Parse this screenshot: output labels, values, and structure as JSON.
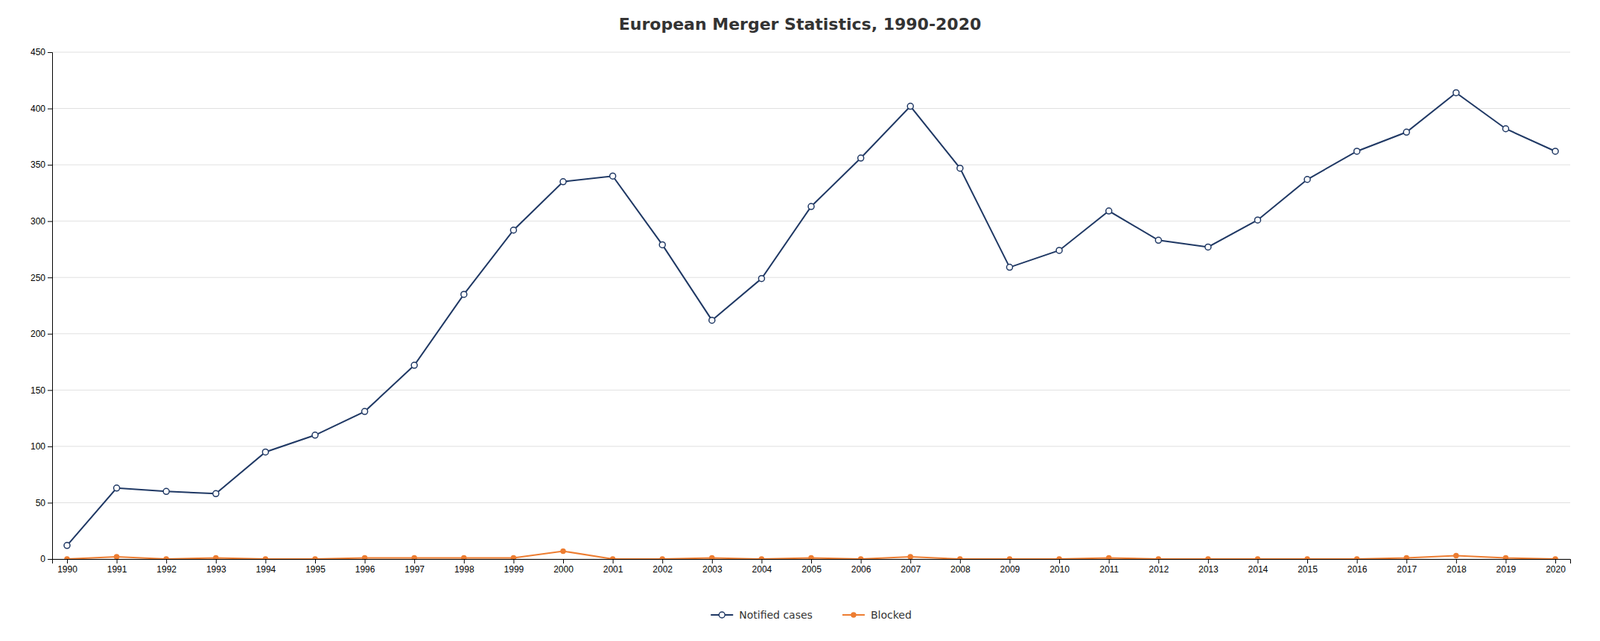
{
  "chart_data": {
    "type": "line",
    "title": "European Merger Statistics, 1990-2020",
    "x": [
      1990,
      1991,
      1992,
      1993,
      1994,
      1995,
      1996,
      1997,
      1998,
      1999,
      2000,
      2001,
      2002,
      2003,
      2004,
      2005,
      2006,
      2007,
      2008,
      2009,
      2010,
      2011,
      2012,
      2013,
      2014,
      2015,
      2016,
      2017,
      2018,
      2019,
      2020
    ],
    "series": [
      {
        "name": "Notified cases",
        "color": "#1f3864",
        "marker": "circle-open",
        "values": [
          12,
          63,
          60,
          58,
          95,
          110,
          131,
          172,
          235,
          292,
          335,
          340,
          279,
          212,
          249,
          313,
          356,
          402,
          347,
          259,
          274,
          309,
          283,
          277,
          301,
          337,
          362,
          379,
          414,
          382,
          362
        ]
      },
      {
        "name": "Blocked",
        "color": "#ed7d31",
        "marker": "circle",
        "values": [
          0,
          2,
          0,
          1,
          0,
          0,
          1,
          1,
          1,
          1,
          7,
          0,
          0,
          1,
          0,
          1,
          0,
          2,
          0,
          0,
          0,
          1,
          0,
          0,
          0,
          0,
          0,
          1,
          3,
          1,
          0
        ]
      }
    ],
    "xlim": [
      1989.7,
      2020.3
    ],
    "xticks": [
      1990,
      1991,
      1992,
      1993,
      1994,
      1995,
      1996,
      1997,
      1998,
      1999,
      2000,
      2001,
      2002,
      2003,
      2004,
      2005,
      2006,
      2007,
      2008,
      2009,
      2010,
      2011,
      2012,
      2013,
      2014,
      2015,
      2016,
      2017,
      2018,
      2019,
      2020
    ],
    "ylim": [
      0,
      450
    ],
    "yticks": [
      0,
      50,
      100,
      150,
      200,
      250,
      300,
      350,
      400,
      450
    ],
    "grid": true,
    "legend": "bottom"
  }
}
